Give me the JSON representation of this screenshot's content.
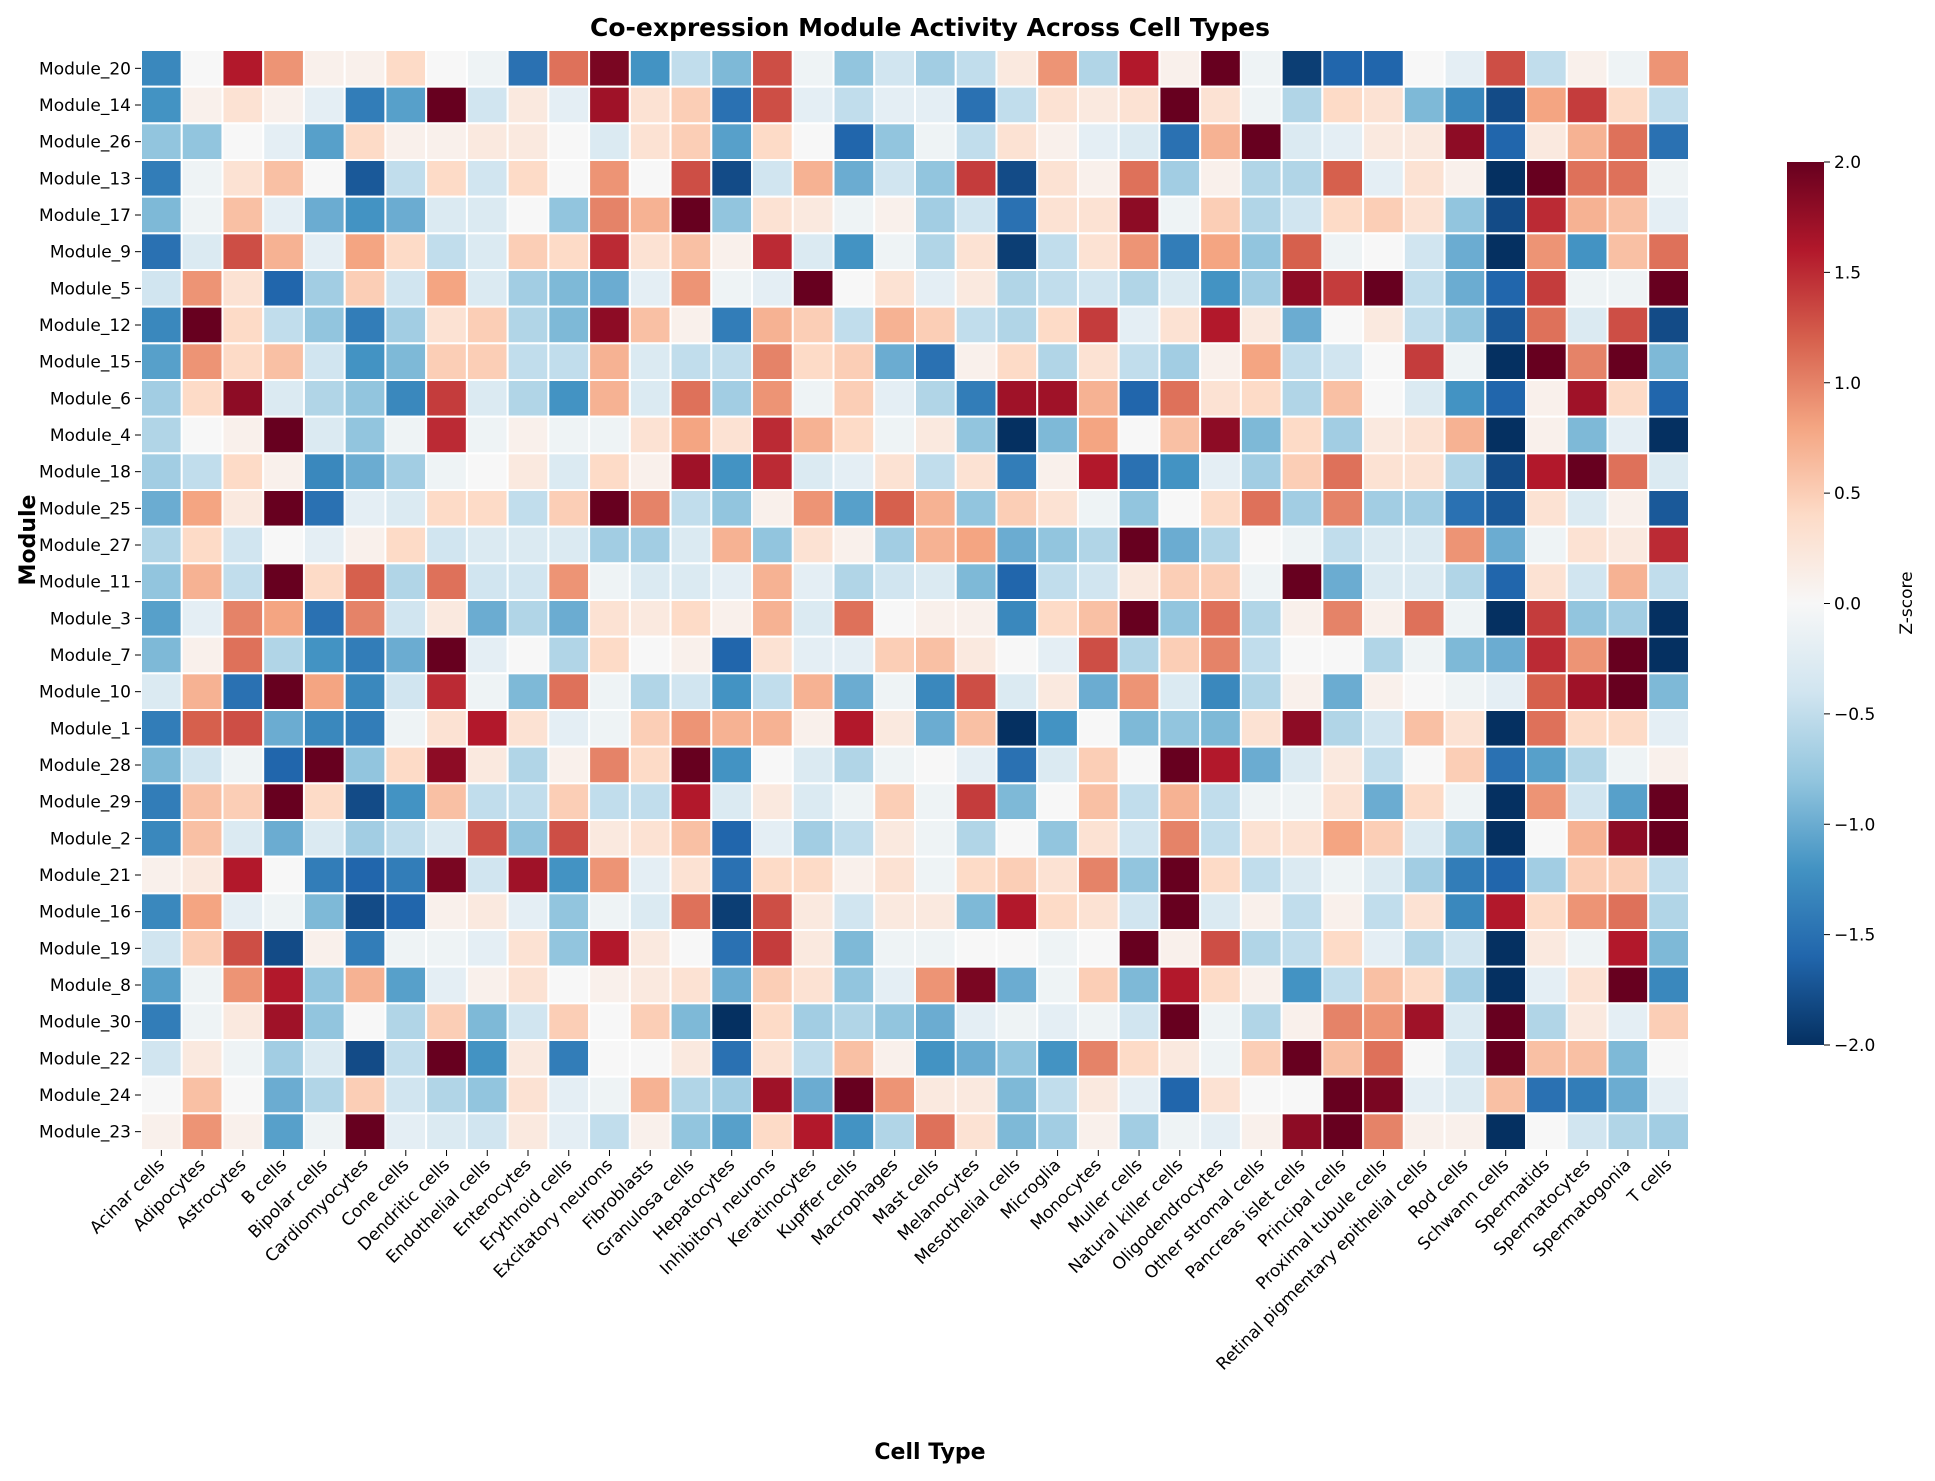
{
  "chart_data": {
    "type": "heatmap",
    "title": "Co-expression Module Activity Across Cell Types",
    "xlabel": "Cell Type",
    "ylabel": "Module",
    "colorbar_label": "Z-score",
    "colorbar_ticks": [
      "2.0",
      "1.5",
      "1.0",
      "0.5",
      "0.0",
      "−0.5",
      "−1.0",
      "−1.5",
      "−2.0"
    ],
    "vmin": -2.0,
    "vmax": 2.0,
    "colormap": "RdBu_r",
    "x_categories": [
      "Acinar cells",
      "Adipocytes",
      "Astrocytes",
      "B cells",
      "Bipolar cells",
      "Cardiomyocytes",
      "Cone cells",
      "Dendritic cells",
      "Endothelial cells",
      "Enterocytes",
      "Erythroid cells",
      "Excitatory neurons",
      "Fibroblasts",
      "Granulosa cells",
      "Hepatocytes",
      "Inhibitory neurons",
      "Keratinocytes",
      "Kupffer cells",
      "Macrophages",
      "Mast cells",
      "Melanocytes",
      "Mesothelial cells",
      "Microglia",
      "Monocytes",
      "Muller cells",
      "Natural killer cells",
      "Oligodendrocytes",
      "Other stromal cells",
      "Pancreas islet cells",
      "Principal cells",
      "Proximal tubule cells",
      "Retinal pigmentary epithelial cells",
      "Rod cells",
      "Schwann cells",
      "Spermatids",
      "Spermatocytes",
      "Spermatogonia",
      "T cells"
    ],
    "y_categories": [
      "Module_20",
      "Module_14",
      "Module_26",
      "Module_13",
      "Module_17",
      "Module_9",
      "Module_5",
      "Module_12",
      "Module_15",
      "Module_6",
      "Module_4",
      "Module_18",
      "Module_25",
      "Module_27",
      "Module_11",
      "Module_3",
      "Module_7",
      "Module_10",
      "Module_1",
      "Module_28",
      "Module_29",
      "Module_2",
      "Module_21",
      "Module_16",
      "Module_19",
      "Module_8",
      "Module_30",
      "Module_22",
      "Module_24",
      "Module_23"
    ],
    "values": [
      [
        -1.3,
        0.0,
        1.6,
        0.9,
        0.1,
        0.1,
        0.4,
        0.0,
        -0.1,
        -1.5,
        1.1,
        1.9,
        -1.2,
        -0.5,
        -0.9,
        1.3,
        -0.1,
        -0.8,
        -0.4,
        -0.7,
        -0.5,
        0.2,
        0.9,
        -0.6,
        1.6,
        0.1,
        2.0,
        -0.1,
        -1.9,
        -1.6,
        -1.6,
        0.0,
        -0.2,
        1.3,
        -0.5,
        0.1,
        -0.1,
        0.9
      ],
      [
        -1.2,
        0.1,
        0.3,
        0.1,
        -0.2,
        -1.4,
        -1.1,
        2.0,
        -0.4,
        0.2,
        -0.2,
        1.7,
        0.3,
        0.5,
        -1.5,
        1.3,
        -0.2,
        -0.5,
        -0.2,
        -0.2,
        -1.5,
        -0.5,
        0.3,
        0.2,
        0.3,
        2.0,
        0.3,
        -0.1,
        -0.6,
        0.4,
        0.3,
        -0.9,
        -1.3,
        -1.8,
        0.8,
        1.4,
        0.4,
        -0.5
      ],
      [
        -0.8,
        -0.8,
        0.0,
        -0.2,
        -1.1,
        0.4,
        0.1,
        0.1,
        0.2,
        0.2,
        0.0,
        -0.3,
        0.3,
        0.5,
        -1.1,
        0.4,
        0.0,
        -1.6,
        -0.8,
        -0.1,
        -0.5,
        0.3,
        0.1,
        -0.2,
        -0.3,
        -1.5,
        0.7,
        2.0,
        -0.3,
        -0.2,
        0.2,
        0.2,
        1.8,
        -1.6,
        0.2,
        0.7,
        1.1,
        -1.5
      ],
      [
        -1.4,
        -0.1,
        0.3,
        0.6,
        0.0,
        -1.7,
        -0.5,
        0.4,
        -0.4,
        0.4,
        0.0,
        0.9,
        0.0,
        1.3,
        -1.8,
        -0.4,
        0.7,
        -1.0,
        -0.4,
        -0.8,
        1.4,
        -1.8,
        0.3,
        0.1,
        1.1,
        -0.7,
        0.1,
        -0.6,
        -0.6,
        1.2,
        -0.2,
        0.3,
        0.1,
        -2.0,
        2.0,
        1.1,
        1.1,
        -0.1
      ],
      [
        -0.9,
        -0.1,
        0.6,
        -0.2,
        -1.0,
        -1.2,
        -1.0,
        -0.3,
        -0.3,
        0.0,
        -0.8,
        1.0,
        0.7,
        2.0,
        -0.8,
        0.3,
        0.2,
        -0.1,
        0.1,
        -0.7,
        -0.4,
        -1.5,
        0.3,
        0.3,
        1.8,
        -0.1,
        0.5,
        -0.6,
        -0.4,
        0.4,
        0.5,
        0.3,
        -0.8,
        -1.8,
        1.5,
        0.7,
        0.6,
        -0.2
      ],
      [
        -1.5,
        -0.3,
        1.3,
        0.7,
        -0.2,
        0.8,
        0.4,
        -0.5,
        -0.3,
        0.5,
        0.4,
        1.5,
        0.3,
        0.6,
        0.1,
        1.5,
        -0.3,
        -1.2,
        -0.1,
        -0.6,
        0.3,
        -1.9,
        -0.5,
        0.3,
        0.9,
        -1.4,
        0.8,
        -0.8,
        1.2,
        -0.1,
        0.0,
        -0.4,
        -1.0,
        -2.0,
        0.9,
        -1.2,
        0.6,
        1.1
      ],
      [
        -0.4,
        0.9,
        0.3,
        -1.6,
        -0.7,
        0.5,
        -0.4,
        0.8,
        -0.3,
        -0.7,
        -0.9,
        -1.0,
        -0.2,
        0.9,
        -0.1,
        -0.2,
        2.0,
        0.0,
        0.3,
        -0.2,
        0.2,
        -0.6,
        -0.5,
        -0.4,
        -0.6,
        -0.3,
        -1.2,
        -0.7,
        1.8,
        1.4,
        2.0,
        -0.5,
        -1.0,
        -1.6,
        1.4,
        -0.1,
        -0.1,
        2.0
      ],
      [
        -1.3,
        2.0,
        0.4,
        -0.5,
        -0.8,
        -1.4,
        -0.7,
        0.3,
        0.5,
        -0.6,
        -0.9,
        1.8,
        0.6,
        0.1,
        -1.4,
        0.7,
        0.5,
        -0.5,
        0.7,
        0.5,
        -0.5,
        -0.6,
        0.4,
        1.4,
        -0.2,
        0.3,
        1.6,
        0.2,
        -1.0,
        0.0,
        0.2,
        -0.5,
        -0.8,
        -1.7,
        1.1,
        -0.3,
        1.3,
        -1.8
      ],
      [
        -1.1,
        0.9,
        0.4,
        0.6,
        -0.4,
        -1.2,
        -0.9,
        0.5,
        0.5,
        -0.5,
        -0.5,
        0.7,
        -0.3,
        -0.5,
        -0.5,
        1.0,
        0.4,
        0.5,
        -1.0,
        -1.5,
        0.1,
        0.4,
        -0.6,
        0.3,
        -0.5,
        -0.7,
        0.1,
        0.8,
        -0.5,
        -0.4,
        0.0,
        1.4,
        -0.1,
        -2.0,
        2.0,
        1.0,
        2.0,
        -0.9
      ],
      [
        -0.7,
        0.4,
        1.8,
        -0.3,
        -0.6,
        -0.8,
        -1.3,
        1.4,
        -0.3,
        -0.6,
        -1.2,
        0.7,
        -0.3,
        1.1,
        -0.7,
        0.9,
        -0.1,
        0.5,
        -0.2,
        -0.6,
        -1.4,
        1.7,
        1.7,
        0.7,
        -1.6,
        1.1,
        0.3,
        0.4,
        -0.6,
        0.6,
        0.0,
        -0.3,
        -1.2,
        -1.6,
        0.1,
        1.7,
        0.4,
        -1.6
      ],
      [
        -0.6,
        0.0,
        0.1,
        2.0,
        -0.3,
        -0.8,
        -0.1,
        1.5,
        -0.1,
        0.1,
        -0.1,
        -0.1,
        0.3,
        0.8,
        0.3,
        1.5,
        0.7,
        0.4,
        -0.1,
        0.2,
        -0.8,
        -2.0,
        -0.9,
        0.8,
        0.0,
        0.6,
        1.8,
        -0.9,
        0.4,
        -0.7,
        0.2,
        0.3,
        0.7,
        -2.0,
        0.1,
        -0.9,
        -0.2,
        -2.0
      ],
      [
        -0.7,
        -0.5,
        0.4,
        0.1,
        -1.3,
        -1.0,
        -0.7,
        -0.1,
        0.0,
        0.2,
        -0.3,
        0.4,
        0.1,
        1.7,
        -1.2,
        1.5,
        -0.3,
        -0.2,
        0.3,
        -0.5,
        0.3,
        -1.4,
        0.1,
        1.6,
        -1.5,
        -1.2,
        -0.2,
        -0.7,
        0.5,
        1.1,
        0.3,
        0.3,
        -0.6,
        -1.8,
        1.6,
        2.0,
        1.1,
        -0.3
      ],
      [
        -1.0,
        0.8,
        0.2,
        2.0,
        -1.5,
        -0.2,
        -0.3,
        0.4,
        0.4,
        -0.5,
        0.5,
        2.0,
        1.0,
        -0.5,
        -0.8,
        0.1,
        0.9,
        -1.1,
        1.2,
        0.7,
        -0.8,
        0.5,
        0.3,
        -0.1,
        -0.8,
        0.0,
        0.4,
        1.1,
        -0.7,
        1.0,
        -0.7,
        -0.7,
        -1.5,
        -1.7,
        0.3,
        -0.3,
        0.1,
        -1.7
      ],
      [
        -0.6,
        0.4,
        -0.4,
        0.0,
        -0.2,
        0.1,
        0.4,
        -0.4,
        -0.3,
        -0.3,
        -0.3,
        -0.7,
        -0.7,
        -0.3,
        0.7,
        -0.8,
        0.3,
        0.1,
        -0.7,
        0.7,
        0.8,
        -1.0,
        -0.8,
        -0.6,
        2.0,
        -1.0,
        -0.6,
        0.0,
        -0.1,
        -0.5,
        -0.3,
        -0.3,
        0.9,
        -1.0,
        -0.1,
        0.3,
        0.2,
        1.5
      ],
      [
        -0.8,
        0.7,
        -0.5,
        2.0,
        0.4,
        1.2,
        -0.6,
        1.1,
        -0.4,
        -0.4,
        0.9,
        -0.1,
        -0.3,
        -0.3,
        -0.2,
        0.7,
        -0.2,
        -0.6,
        -0.4,
        -0.3,
        -0.9,
        -1.6,
        -0.5,
        -0.4,
        0.2,
        0.5,
        0.5,
        -0.1,
        2.0,
        -1.0,
        -0.3,
        -0.3,
        -0.6,
        -1.6,
        0.3,
        -0.4,
        0.7,
        -0.5
      ],
      [
        -1.1,
        -0.2,
        1.0,
        0.8,
        -1.5,
        1.0,
        -0.4,
        0.2,
        -1.0,
        -0.6,
        -1.0,
        0.3,
        0.2,
        0.4,
        0.1,
        0.7,
        -0.3,
        1.1,
        0.0,
        0.1,
        0.1,
        -1.3,
        0.4,
        0.6,
        2.0,
        -0.8,
        1.1,
        -0.6,
        0.1,
        1.0,
        0.1,
        1.1,
        -0.1,
        -2.0,
        1.4,
        -0.8,
        -0.7,
        -2.0
      ],
      [
        -0.9,
        0.1,
        1.1,
        -0.6,
        -1.2,
        -1.4,
        -1.0,
        2.0,
        -0.2,
        0.0,
        -0.6,
        0.4,
        0.0,
        0.1,
        -1.6,
        0.3,
        -0.2,
        -0.2,
        0.5,
        0.6,
        0.2,
        0.0,
        -0.2,
        1.3,
        -0.6,
        0.5,
        1.0,
        -0.5,
        0.0,
        0.0,
        -0.6,
        -0.1,
        -0.9,
        -1.0,
        1.5,
        0.9,
        2.0,
        -2.0
      ],
      [
        -0.3,
        0.7,
        -1.5,
        2.0,
        0.8,
        -1.3,
        -0.4,
        1.5,
        -0.1,
        -0.9,
        1.1,
        -0.1,
        -0.6,
        -0.4,
        -1.2,
        -0.5,
        0.7,
        -1.0,
        -0.1,
        -1.3,
        1.3,
        -0.3,
        0.2,
        -1.0,
        0.9,
        -0.3,
        -1.3,
        -0.6,
        0.1,
        -1.0,
        0.1,
        0.0,
        -0.1,
        -0.2,
        1.2,
        1.7,
        2.0,
        -0.9
      ],
      [
        -1.4,
        1.2,
        1.3,
        -1.0,
        -1.3,
        -1.4,
        -0.1,
        0.3,
        1.6,
        0.3,
        -0.2,
        -0.1,
        0.5,
        0.9,
        0.7,
        0.7,
        0.1,
        1.6,
        0.2,
        -1.0,
        0.6,
        -2.0,
        -1.2,
        0.0,
        -0.9,
        -0.8,
        -0.9,
        0.3,
        1.8,
        -0.6,
        -0.4,
        0.6,
        0.3,
        -2.0,
        1.1,
        0.4,
        0.4,
        -0.2
      ],
      [
        -0.9,
        -0.4,
        -0.1,
        -1.6,
        2.0,
        -0.8,
        0.4,
        1.8,
        0.2,
        -0.6,
        0.1,
        1.0,
        0.4,
        2.0,
        -1.2,
        0.0,
        -0.3,
        -0.6,
        -0.1,
        0.0,
        -0.2,
        -1.5,
        -0.3,
        0.5,
        0.0,
        2.0,
        1.6,
        -1.0,
        -0.3,
        0.2,
        -0.5,
        0.0,
        0.5,
        -1.5,
        -1.1,
        -0.6,
        -0.1,
        0.1
      ],
      [
        -1.4,
        0.6,
        0.5,
        2.0,
        0.4,
        -1.8,
        -1.2,
        0.6,
        -0.5,
        -0.5,
        0.5,
        -0.5,
        -0.5,
        1.6,
        -0.3,
        0.2,
        -0.3,
        -0.1,
        0.5,
        -0.1,
        1.4,
        -0.9,
        0.0,
        0.6,
        -0.5,
        0.7,
        -0.5,
        -0.1,
        -0.1,
        0.3,
        -1.0,
        0.4,
        -0.1,
        -2.0,
        0.9,
        -0.4,
        -1.1,
        2.0
      ],
      [
        -1.3,
        0.6,
        -0.3,
        -1.0,
        -0.3,
        -0.7,
        -0.5,
        -0.3,
        1.3,
        -0.8,
        1.3,
        0.2,
        0.3,
        0.6,
        -1.6,
        -0.2,
        -0.7,
        -0.5,
        0.2,
        -0.1,
        -0.6,
        0.0,
        -0.8,
        0.3,
        -0.4,
        1.0,
        -0.5,
        0.3,
        0.3,
        0.8,
        0.5,
        -0.3,
        -0.8,
        -2.0,
        0.0,
        0.7,
        1.8,
        2.0
      ],
      [
        0.1,
        0.2,
        1.6,
        0.0,
        -1.4,
        -1.6,
        -1.4,
        1.9,
        -0.4,
        1.7,
        -1.2,
        0.9,
        -0.2,
        0.3,
        -1.5,
        0.4,
        0.4,
        0.1,
        0.3,
        -0.1,
        0.4,
        0.5,
        0.3,
        1.0,
        -0.8,
        2.0,
        0.4,
        -0.5,
        -0.3,
        -0.1,
        -0.3,
        -0.7,
        -1.4,
        -1.6,
        -0.7,
        0.5,
        0.5,
        -0.5
      ],
      [
        -1.3,
        0.8,
        -0.2,
        -0.1,
        -0.9,
        -1.8,
        -1.6,
        0.1,
        0.2,
        -0.2,
        -0.8,
        -0.1,
        -0.3,
        1.1,
        -1.9,
        1.3,
        0.2,
        -0.4,
        0.2,
        0.2,
        -0.9,
        1.6,
        0.4,
        0.3,
        -0.4,
        2.0,
        -0.3,
        0.1,
        -0.5,
        0.1,
        -0.5,
        0.3,
        -1.3,
        1.6,
        0.4,
        0.9,
        1.1,
        -0.6
      ],
      [
        -0.4,
        0.5,
        1.3,
        -1.8,
        0.1,
        -1.4,
        -0.1,
        -0.1,
        -0.2,
        0.3,
        -0.8,
        1.6,
        0.2,
        0.0,
        -1.5,
        1.4,
        0.2,
        -0.9,
        -0.1,
        -0.1,
        0.0,
        0.0,
        -0.1,
        0.0,
        2.0,
        0.1,
        1.3,
        -0.6,
        -0.5,
        0.4,
        -0.2,
        -0.6,
        -0.4,
        -2.0,
        0.2,
        -0.1,
        1.6,
        -0.9
      ],
      [
        -1.1,
        -0.1,
        0.9,
        1.6,
        -0.8,
        0.7,
        -1.1,
        -0.2,
        0.1,
        0.3,
        0.0,
        0.1,
        0.2,
        0.3,
        -1.0,
        0.5,
        0.3,
        -0.8,
        -0.2,
        0.9,
        1.9,
        -1.0,
        -0.1,
        0.5,
        -0.9,
        1.6,
        0.4,
        0.1,
        -1.2,
        -0.5,
        0.6,
        0.4,
        -0.7,
        -2.0,
        -0.2,
        0.3,
        2.0,
        -1.3
      ],
      [
        -1.4,
        -0.1,
        0.2,
        1.7,
        -0.8,
        0.0,
        -0.6,
        0.5,
        -0.9,
        -0.4,
        0.5,
        0.0,
        0.5,
        -0.9,
        -2.0,
        0.4,
        -0.7,
        -0.6,
        -0.8,
        -1.0,
        -0.2,
        -0.1,
        -0.2,
        -0.1,
        -0.4,
        2.0,
        -0.1,
        -0.6,
        0.1,
        1.0,
        0.9,
        1.7,
        -0.3,
        2.0,
        -0.6,
        0.2,
        -0.2,
        0.5
      ],
      [
        -0.4,
        0.2,
        -0.1,
        -0.7,
        -0.3,
        -1.8,
        -0.5,
        2.0,
        -1.2,
        0.2,
        -1.4,
        0.0,
        0.0,
        0.2,
        -1.5,
        0.3,
        -0.5,
        0.6,
        0.1,
        -1.2,
        -1.0,
        -0.8,
        -1.2,
        1.0,
        0.4,
        0.2,
        -0.1,
        0.5,
        2.0,
        0.6,
        1.1,
        0.0,
        -0.4,
        2.0,
        0.6,
        0.6,
        -0.9,
        0.0
      ],
      [
        0.0,
        0.6,
        0.0,
        -1.0,
        -0.6,
        0.5,
        -0.4,
        -0.6,
        -0.8,
        0.3,
        -0.2,
        -0.1,
        0.7,
        -0.6,
        -0.7,
        1.7,
        -1.0,
        2.0,
        0.9,
        0.2,
        0.2,
        -0.9,
        -0.5,
        0.2,
        -0.2,
        -1.6,
        0.3,
        0.0,
        0.0,
        2.0,
        1.9,
        -0.2,
        -0.3,
        0.6,
        -1.5,
        -1.4,
        -1.0,
        -0.2
      ],
      [
        0.1,
        0.9,
        0.1,
        -1.1,
        -0.1,
        2.0,
        -0.2,
        -0.3,
        -0.4,
        0.2,
        -0.2,
        -0.5,
        0.1,
        -0.8,
        -1.1,
        0.4,
        1.6,
        -1.2,
        -0.6,
        1.1,
        0.3,
        -0.9,
        -0.7,
        0.1,
        -0.7,
        -0.1,
        -0.2,
        0.1,
        1.8,
        2.0,
        1.0,
        0.1,
        0.1,
        -2.0,
        0.0,
        -0.4,
        -0.6,
        -0.7
      ]
    ]
  }
}
